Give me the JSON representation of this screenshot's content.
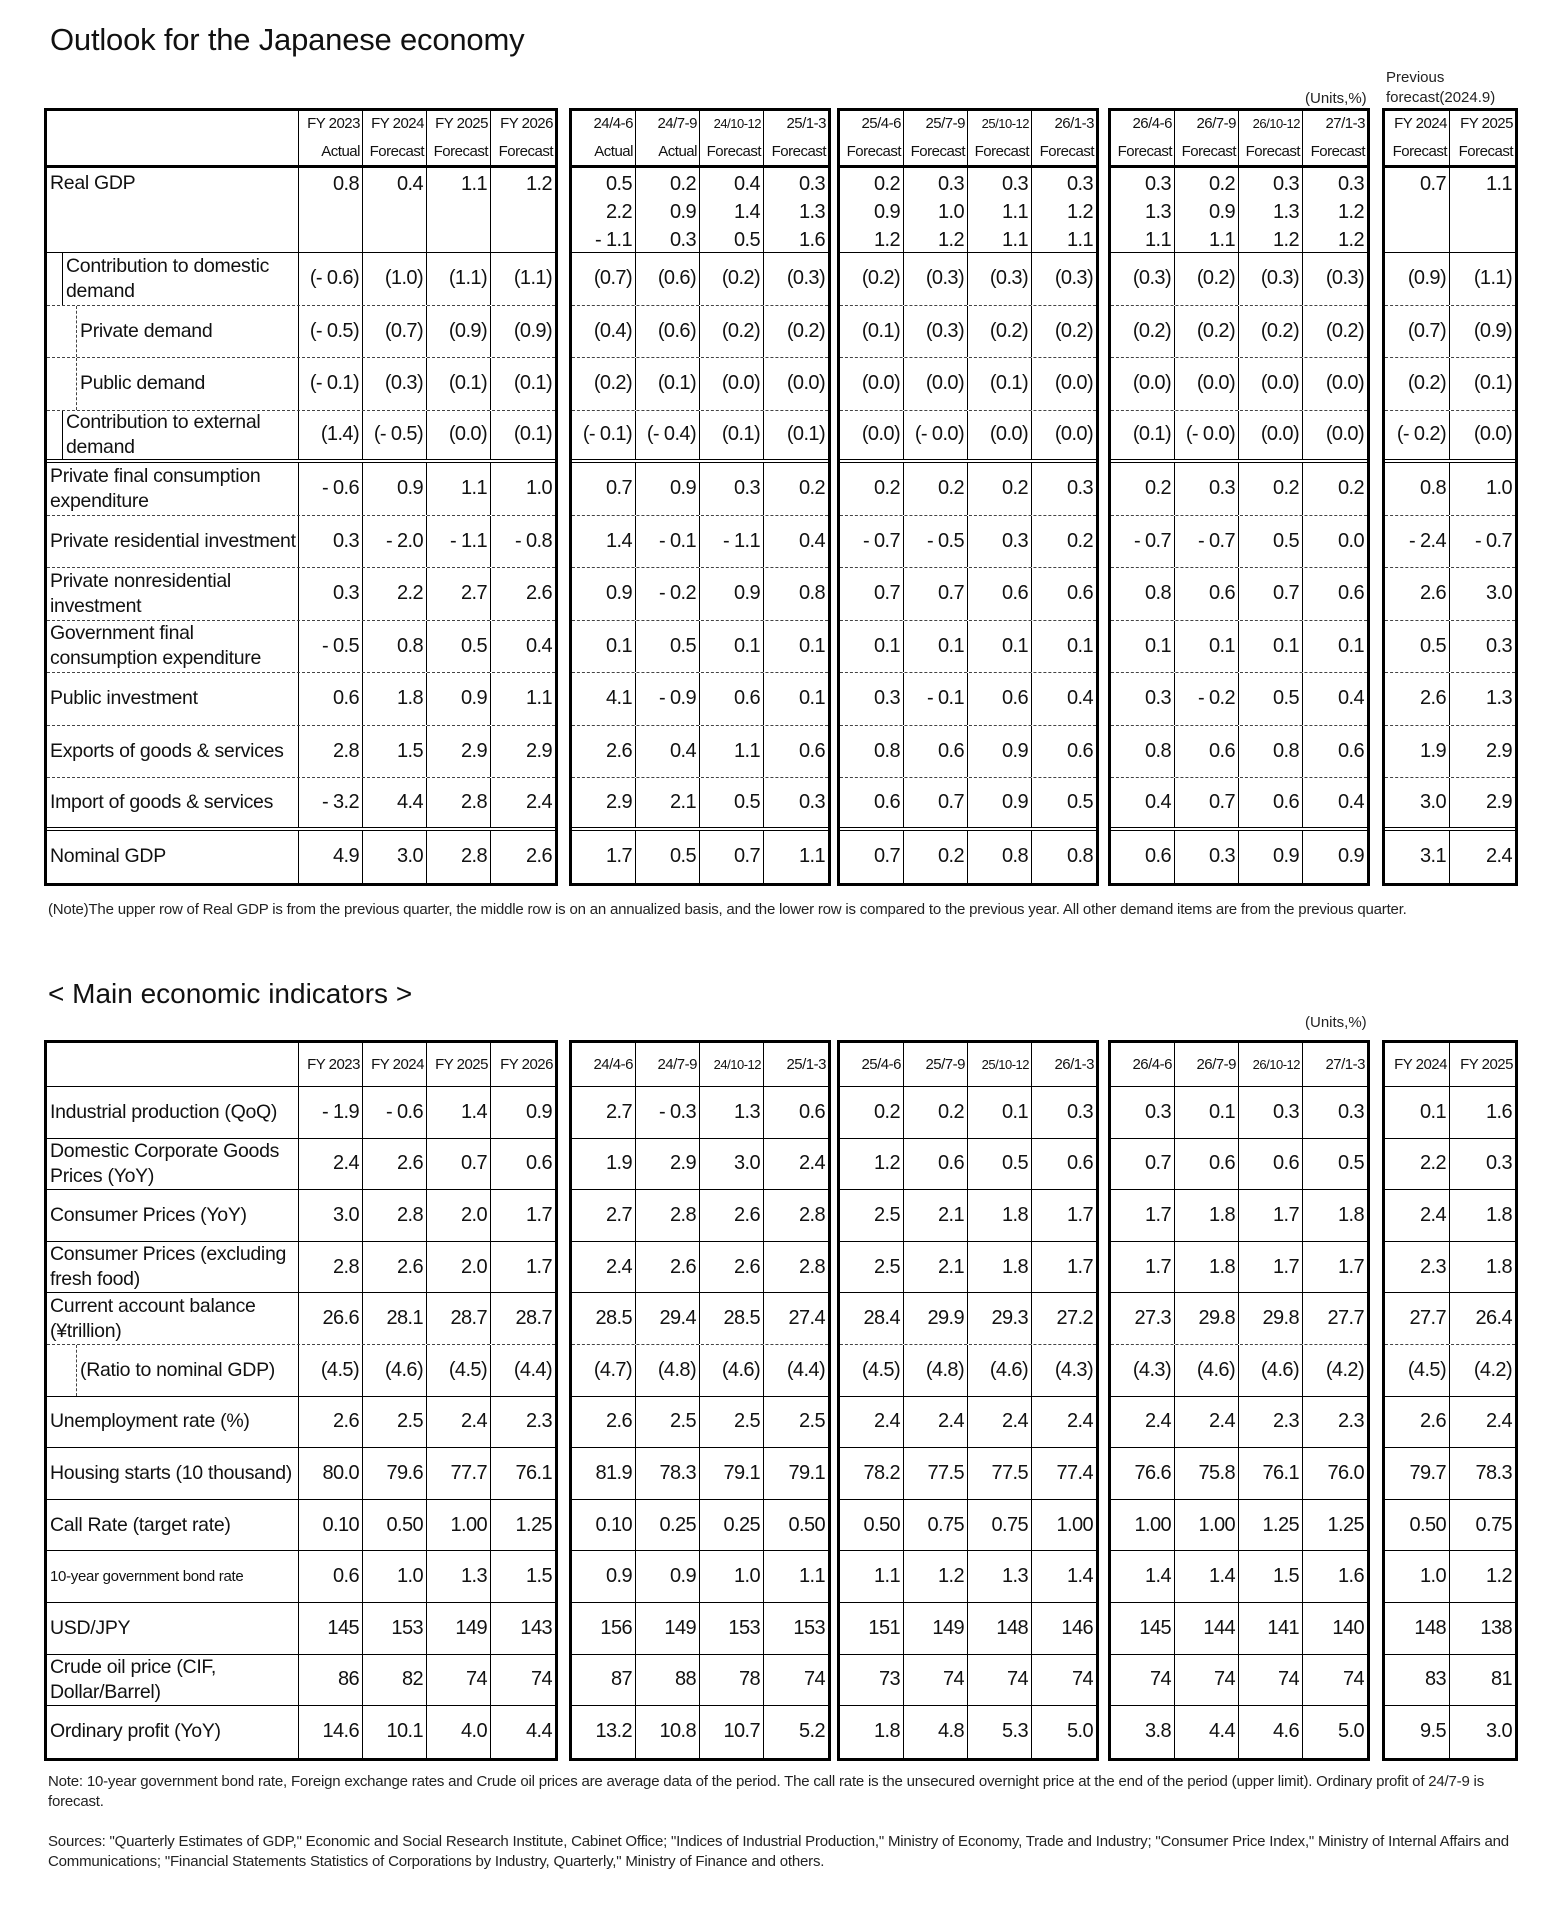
{
  "outlook": {
    "title": "Outlook for the Japanese economy",
    "units": "(Units,%)",
    "previous_label": [
      "Previous",
      "forecast(2024.9)"
    ],
    "headers": [
      "FY 2023",
      "FY 2024",
      "FY 2025",
      "FY 2026",
      "24/4-6",
      "24/7-9",
      "24/10-12",
      "25/1-3",
      "25/4-6",
      "25/7-9",
      "25/10-12",
      "26/1-3",
      "26/4-6",
      "26/7-9",
      "26/10-12",
      "27/1-3",
      "FY 2024",
      "FY 2025"
    ],
    "subheaders": [
      "Actual",
      "Forecast",
      "Forecast",
      "Forecast",
      "Actual",
      "Actual",
      "Forecast",
      "Forecast",
      "Forecast",
      "Forecast",
      "Forecast",
      "Forecast",
      "Forecast",
      "Forecast",
      "Forecast",
      "Forecast",
      "Forecast",
      "Forecast"
    ],
    "rows": [
      {
        "label": "Real GDP",
        "indent": 0,
        "values": [
          "0.8",
          "0.4",
          "1.1",
          "1.2",
          "0.5",
          "0.2",
          "0.4",
          "0.3",
          "0.2",
          "0.3",
          "0.3",
          "0.3",
          "0.3",
          "0.2",
          "0.3",
          "0.3",
          "0.7",
          "1.1"
        ],
        "annualized": [
          "",
          "",
          "",
          "",
          "2.2",
          "0.9",
          "1.4",
          "1.3",
          "0.9",
          "1.0",
          "1.1",
          "1.2",
          "1.3",
          "0.9",
          "1.3",
          "1.2",
          "",
          ""
        ],
        "yoy": [
          "",
          "",
          "",
          "",
          "- 1.1",
          "0.3",
          "0.5",
          "1.6",
          "1.2",
          "1.2",
          "1.1",
          "1.1",
          "1.1",
          "1.1",
          "1.2",
          "1.2",
          "",
          ""
        ]
      },
      {
        "label": "Contribution to domestic demand",
        "indent": 1,
        "values": [
          "(- 0.6)",
          "(1.0)",
          "(1.1)",
          "(1.1)",
          "(0.7)",
          "(0.6)",
          "(0.2)",
          "(0.3)",
          "(0.2)",
          "(0.3)",
          "(0.3)",
          "(0.3)",
          "(0.3)",
          "(0.2)",
          "(0.3)",
          "(0.3)",
          "(0.9)",
          "(1.1)"
        ]
      },
      {
        "label": "Private demand",
        "indent": 2,
        "values": [
          "(- 0.5)",
          "(0.7)",
          "(0.9)",
          "(0.9)",
          "(0.4)",
          "(0.6)",
          "(0.2)",
          "(0.2)",
          "(0.1)",
          "(0.3)",
          "(0.2)",
          "(0.2)",
          "(0.2)",
          "(0.2)",
          "(0.2)",
          "(0.2)",
          "(0.7)",
          "(0.9)"
        ]
      },
      {
        "label": "Public demand",
        "indent": 2,
        "values": [
          "(- 0.1)",
          "(0.3)",
          "(0.1)",
          "(0.1)",
          "(0.2)",
          "(0.1)",
          "(0.0)",
          "(0.0)",
          "(0.0)",
          "(0.0)",
          "(0.1)",
          "(0.0)",
          "(0.0)",
          "(0.0)",
          "(0.0)",
          "(0.0)",
          "(0.2)",
          "(0.1)"
        ]
      },
      {
        "label": "Contribution to external demand",
        "indent": 1,
        "values": [
          "(1.4)",
          "(- 0.5)",
          "(0.0)",
          "(0.1)",
          "(- 0.1)",
          "(- 0.4)",
          "(0.1)",
          "(0.1)",
          "(0.0)",
          "(- 0.0)",
          "(0.0)",
          "(0.0)",
          "(0.1)",
          "(- 0.0)",
          "(0.0)",
          "(0.0)",
          "(- 0.2)",
          "(0.0)"
        ]
      },
      {
        "label": "Private final consumption expenditure",
        "indent": 0,
        "values": [
          "- 0.6",
          "0.9",
          "1.1",
          "1.0",
          "0.7",
          "0.9",
          "0.3",
          "0.2",
          "0.2",
          "0.2",
          "0.2",
          "0.3",
          "0.2",
          "0.3",
          "0.2",
          "0.2",
          "0.8",
          "1.0"
        ]
      },
      {
        "label": "Private residential investment",
        "indent": 0,
        "values": [
          "0.3",
          "- 2.0",
          "- 1.1",
          "- 0.8",
          "1.4",
          "- 0.1",
          "- 1.1",
          "0.4",
          "- 0.7",
          "- 0.5",
          "0.3",
          "0.2",
          "- 0.7",
          "- 0.7",
          "0.5",
          "0.0",
          "- 2.4",
          "- 0.7"
        ]
      },
      {
        "label": "Private nonresidential investment",
        "indent": 0,
        "values": [
          "0.3",
          "2.2",
          "2.7",
          "2.6",
          "0.9",
          "- 0.2",
          "0.9",
          "0.8",
          "0.7",
          "0.7",
          "0.6",
          "0.6",
          "0.8",
          "0.6",
          "0.7",
          "0.6",
          "2.6",
          "3.0"
        ]
      },
      {
        "label": "Government final consumption expenditure",
        "indent": 0,
        "values": [
          "- 0.5",
          "0.8",
          "0.5",
          "0.4",
          "0.1",
          "0.5",
          "0.1",
          "0.1",
          "0.1",
          "0.1",
          "0.1",
          "0.1",
          "0.1",
          "0.1",
          "0.1",
          "0.1",
          "0.5",
          "0.3"
        ]
      },
      {
        "label": "Public investment",
        "indent": 0,
        "values": [
          "0.6",
          "1.8",
          "0.9",
          "1.1",
          "4.1",
          "- 0.9",
          "0.6",
          "0.1",
          "0.3",
          "- 0.1",
          "0.6",
          "0.4",
          "0.3",
          "- 0.2",
          "0.5",
          "0.4",
          "2.6",
          "1.3"
        ]
      },
      {
        "label": "Exports of goods & services",
        "indent": 0,
        "values": [
          "2.8",
          "1.5",
          "2.9",
          "2.9",
          "2.6",
          "0.4",
          "1.1",
          "0.6",
          "0.8",
          "0.6",
          "0.9",
          "0.6",
          "0.8",
          "0.6",
          "0.8",
          "0.6",
          "1.9",
          "2.9"
        ]
      },
      {
        "label": "Import of goods & services",
        "indent": 0,
        "values": [
          "- 3.2",
          "4.4",
          "2.8",
          "2.4",
          "2.9",
          "2.1",
          "0.5",
          "0.3",
          "0.6",
          "0.7",
          "0.9",
          "0.5",
          "0.4",
          "0.7",
          "0.6",
          "0.4",
          "3.0",
          "2.9"
        ]
      },
      {
        "label": "Nominal GDP",
        "indent": 0,
        "values": [
          "4.9",
          "3.0",
          "2.8",
          "2.6",
          "1.7",
          "0.5",
          "0.7",
          "1.1",
          "0.7",
          "0.2",
          "0.8",
          "0.8",
          "0.6",
          "0.3",
          "0.9",
          "0.9",
          "3.1",
          "2.4"
        ]
      }
    ],
    "note": "(Note)The upper row of Real GDP is from the previous quarter, the middle row is on an annualized basis, and the lower row is compared to the previous year. All other demand items are from the previous quarter."
  },
  "indicators": {
    "title": "< Main economic indicators >",
    "units": "(Units,%)",
    "headers": [
      "FY 2023",
      "FY 2024",
      "FY 2025",
      "FY 2026",
      "24/4-6",
      "24/7-9",
      "24/10-12",
      "25/1-3",
      "25/4-6",
      "25/7-9",
      "25/10-12",
      "26/1-3",
      "26/4-6",
      "26/7-9",
      "26/10-12",
      "27/1-3",
      "FY 2024",
      "FY 2025"
    ],
    "rows": [
      {
        "label": "Industrial production (QoQ)",
        "indent": 0,
        "values": [
          "- 1.9",
          "- 0.6",
          "1.4",
          "0.9",
          "2.7",
          "- 0.3",
          "1.3",
          "0.6",
          "0.2",
          "0.2",
          "0.1",
          "0.3",
          "0.3",
          "0.1",
          "0.3",
          "0.3",
          "0.1",
          "1.6"
        ]
      },
      {
        "label": "Domestic Corporate Goods Prices (YoY)",
        "indent": 0,
        "values": [
          "2.4",
          "2.6",
          "0.7",
          "0.6",
          "1.9",
          "2.9",
          "3.0",
          "2.4",
          "1.2",
          "0.6",
          "0.5",
          "0.6",
          "0.7",
          "0.6",
          "0.6",
          "0.5",
          "2.2",
          "0.3"
        ]
      },
      {
        "label": "Consumer Prices (YoY)",
        "indent": 0,
        "values": [
          "3.0",
          "2.8",
          "2.0",
          "1.7",
          "2.7",
          "2.8",
          "2.6",
          "2.8",
          "2.5",
          "2.1",
          "1.8",
          "1.7",
          "1.7",
          "1.8",
          "1.7",
          "1.8",
          "2.4",
          "1.8"
        ]
      },
      {
        "label": "Consumer Prices (excluding fresh food)",
        "indent": 0,
        "values": [
          "2.8",
          "2.6",
          "2.0",
          "1.7",
          "2.4",
          "2.6",
          "2.6",
          "2.8",
          "2.5",
          "2.1",
          "1.8",
          "1.7",
          "1.7",
          "1.8",
          "1.7",
          "1.7",
          "2.3",
          "1.8"
        ]
      },
      {
        "label": "Current account balance  (¥trillion)",
        "indent": 0,
        "values": [
          "26.6",
          "28.1",
          "28.7",
          "28.7",
          "28.5",
          "29.4",
          "28.5",
          "27.4",
          "28.4",
          "29.9",
          "29.3",
          "27.2",
          "27.3",
          "29.8",
          "29.8",
          "27.7",
          "27.7",
          "26.4"
        ]
      },
      {
        "label": "(Ratio to nominal GDP)",
        "indent": 2,
        "values": [
          "(4.5)",
          "(4.6)",
          "(4.5)",
          "(4.4)",
          "(4.7)",
          "(4.8)",
          "(4.6)",
          "(4.4)",
          "(4.5)",
          "(4.8)",
          "(4.6)",
          "(4.3)",
          "(4.3)",
          "(4.6)",
          "(4.6)",
          "(4.2)",
          "(4.5)",
          "(4.2)"
        ]
      },
      {
        "label": "Unemployment rate (%)",
        "indent": 0,
        "values": [
          "2.6",
          "2.5",
          "2.4",
          "2.3",
          "2.6",
          "2.5",
          "2.5",
          "2.5",
          "2.4",
          "2.4",
          "2.4",
          "2.4",
          "2.4",
          "2.4",
          "2.3",
          "2.3",
          "2.6",
          "2.4"
        ]
      },
      {
        "label": "Housing starts (10 thousand)",
        "indent": 0,
        "values": [
          "80.0",
          "79.6",
          "77.7",
          "76.1",
          "81.9",
          "78.3",
          "79.1",
          "79.1",
          "78.2",
          "77.5",
          "77.5",
          "77.4",
          "76.6",
          "75.8",
          "76.1",
          "76.0",
          "79.7",
          "78.3"
        ]
      },
      {
        "label": "Call Rate (target rate)",
        "indent": 0,
        "values": [
          "0.10",
          "0.50",
          "1.00",
          "1.25",
          "0.10",
          "0.25",
          "0.25",
          "0.50",
          "0.50",
          "0.75",
          "0.75",
          "1.00",
          "1.00",
          "1.00",
          "1.25",
          "1.25",
          "0.50",
          "0.75"
        ]
      },
      {
        "label": "10-year government bond rate",
        "indent": 0,
        "small": true,
        "values": [
          "0.6",
          "1.0",
          "1.3",
          "1.5",
          "0.9",
          "0.9",
          "1.0",
          "1.1",
          "1.1",
          "1.2",
          "1.3",
          "1.4",
          "1.4",
          "1.4",
          "1.5",
          "1.6",
          "1.0",
          "1.2"
        ]
      },
      {
        "label": "USD/JPY",
        "indent": 0,
        "values": [
          "145",
          "153",
          "149",
          "143",
          "156",
          "149",
          "153",
          "153",
          "151",
          "149",
          "148",
          "146",
          "145",
          "144",
          "141",
          "140",
          "148",
          "138"
        ]
      },
      {
        "label": "Crude oil price (CIF, Dollar/Barrel)",
        "indent": 0,
        "values": [
          "86",
          "82",
          "74",
          "74",
          "87",
          "88",
          "78",
          "74",
          "73",
          "74",
          "74",
          "74",
          "74",
          "74",
          "74",
          "74",
          "83",
          "81"
        ]
      },
      {
        "label": "Ordinary profit (YoY)",
        "indent": 0,
        "values": [
          "14.6",
          "10.1",
          "4.0",
          "4.4",
          "13.2",
          "10.8",
          "10.7",
          "5.2",
          "1.8",
          "4.8",
          "5.3",
          "5.0",
          "3.8",
          "4.4",
          "4.6",
          "5.0",
          "9.5",
          "3.0"
        ]
      }
    ],
    "note": "Note: 10-year government bond rate, Foreign exchange rates and Crude oil prices are average data of the period. The call rate is the unsecured overnight price at the end of the period (upper limit). Ordinary profit of 24/7-9 is forecast.",
    "sources": "Sources: \"Quarterly Estimates of GDP,\" Economic and Social Research Institute, Cabinet Office; \"Indices of Industrial Production,\" Ministry of Economy, Trade and Industry; \"Consumer Price Index,\" Ministry of Internal Affairs and Communications; \"Financial Statements Statistics of Corporations by Industry, Quarterly,\" Ministry of Finance and others."
  }
}
